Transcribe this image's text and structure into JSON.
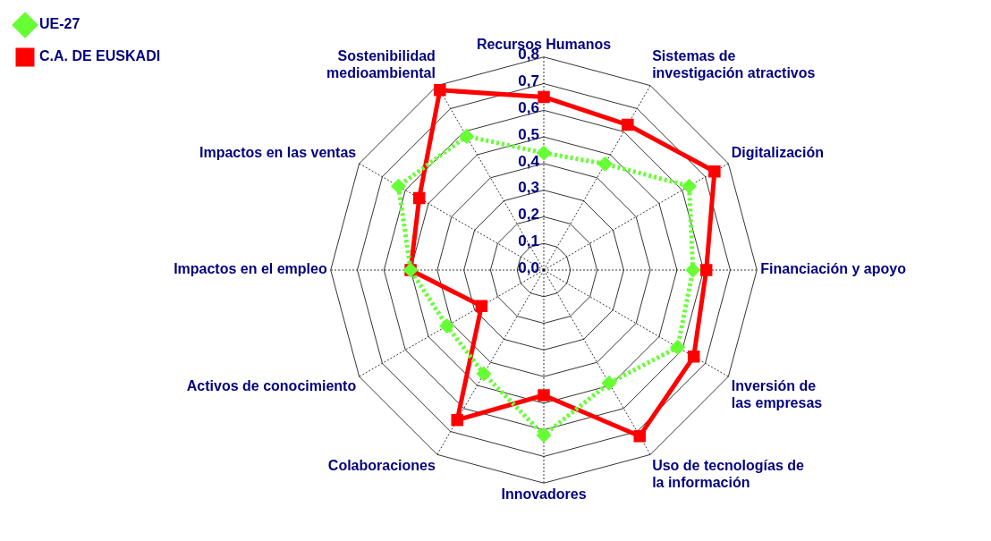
{
  "chart_data": {
    "type": "radar",
    "categories": [
      "Recursos Humanos",
      "Sistemas de investigación atractivos",
      "Digitalización",
      "Financiación y apoyo",
      "Inversión de las empresas",
      "Uso de tecnologías de la información",
      "Innovadores",
      "Colaboraciones",
      "Activos de conocimiento",
      "Impactos en el empleo",
      "Impactos en las ventas",
      "Sostenibilidad medioambiental"
    ],
    "series": [
      {
        "name": "UE-27",
        "color": "#66ff33",
        "marker": "diamond",
        "line_style": "dotted",
        "values": [
          0.44,
          0.46,
          0.63,
          0.56,
          0.58,
          0.49,
          0.62,
          0.45,
          0.42,
          0.5,
          0.63,
          0.58
        ]
      },
      {
        "name": "C.A. DE EUSKADI",
        "color": "#ff0000",
        "marker": "square",
        "line_style": "solid",
        "values": [
          0.65,
          0.63,
          0.74,
          0.61,
          0.65,
          0.72,
          0.47,
          0.65,
          0.27,
          0.5,
          0.54,
          0.78
        ]
      }
    ],
    "ylim": [
      0,
      0.8
    ],
    "yticks": [
      {
        "value": 0,
        "label": "0,0"
      },
      {
        "value": 0.1,
        "label": "0,1"
      },
      {
        "value": 0.2,
        "label": "0,2"
      },
      {
        "value": 0.3,
        "label": "0,3"
      },
      {
        "value": 0.4,
        "label": "0,4"
      },
      {
        "value": 0.5,
        "label": "0,5"
      },
      {
        "value": 0.6,
        "label": "0,6"
      },
      {
        "value": 0.7,
        "label": "0,7"
      },
      {
        "value": 0.8,
        "label": "0,8"
      }
    ],
    "grid": true,
    "legend": "top left"
  }
}
